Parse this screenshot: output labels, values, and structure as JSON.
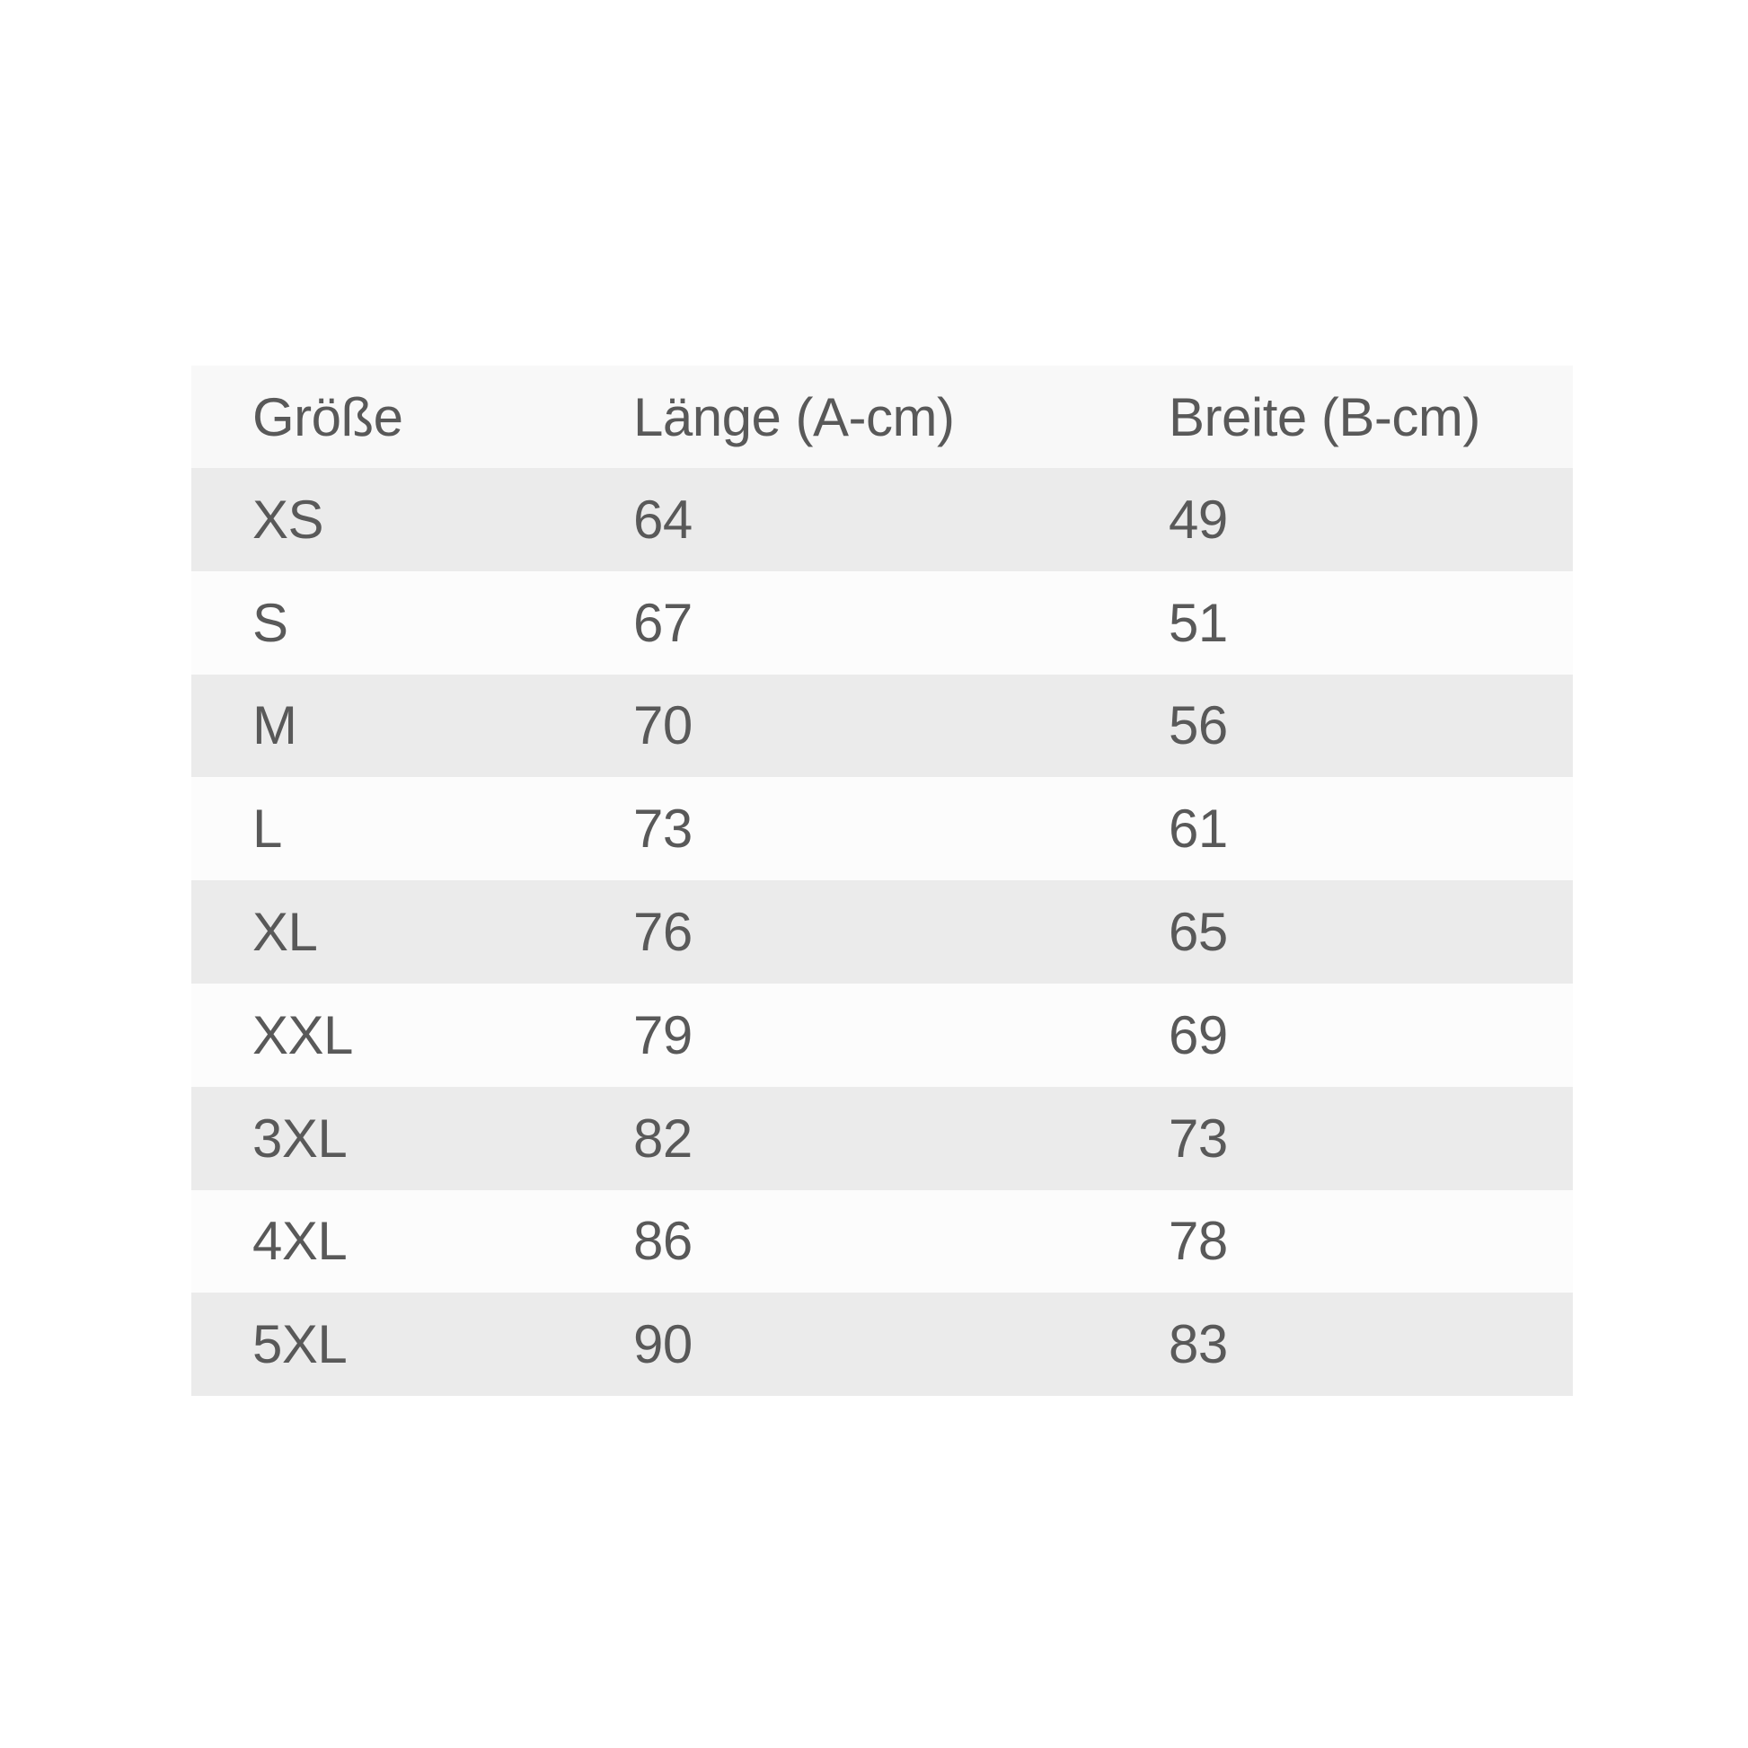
{
  "table": {
    "headers": [
      "Größe",
      "Länge (A-cm)",
      "Breite (B-cm)"
    ],
    "rows": [
      [
        "XS",
        "64",
        "49"
      ],
      [
        "S",
        "67",
        "51"
      ],
      [
        "M",
        "70",
        "56"
      ],
      [
        "L",
        "73",
        "61"
      ],
      [
        "XL",
        "76",
        "65"
      ],
      [
        "XXL",
        "79",
        "69"
      ],
      [
        "3XL",
        "82",
        "73"
      ],
      [
        "4XL",
        "86",
        "78"
      ],
      [
        "5XL",
        "90",
        "83"
      ]
    ]
  }
}
